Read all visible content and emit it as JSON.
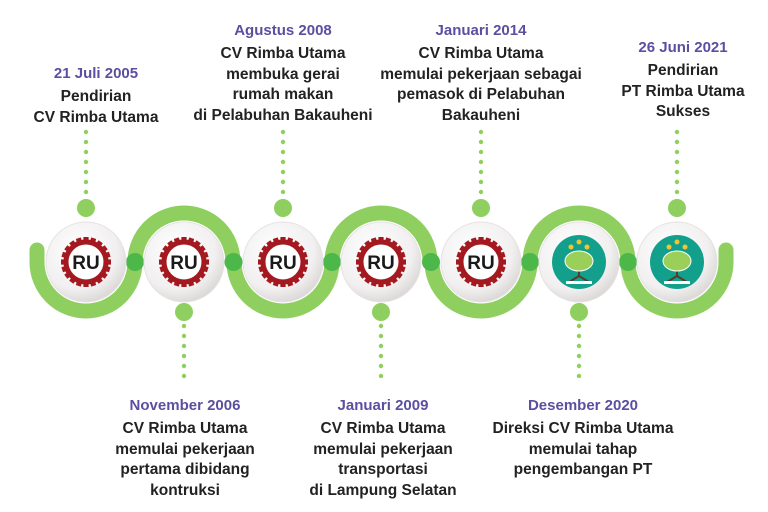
{
  "colors": {
    "band": "#8fcf5f",
    "band_dark": "#6dbb3e",
    "joint": "#4cb84a",
    "date": "#5a4fa0",
    "ru_gear": "#a3191f",
    "tree_bg": "#12a08c"
  },
  "events": [
    {
      "date": "21 Juli 2005",
      "lines": [
        "Pendirian",
        "CV Rimba Utama"
      ],
      "logo": "RU",
      "position": "top"
    },
    {
      "date": "November 2006",
      "lines": [
        "CV Rimba Utama",
        "memulai pekerjaan",
        "pertama dibidang",
        "kontruksi"
      ],
      "logo": "RU",
      "position": "bottom"
    },
    {
      "date": "Agustus 2008",
      "lines": [
        "CV Rimba Utama",
        "membuka gerai",
        "rumah makan",
        "di Pelabuhan Bakauheni"
      ],
      "logo": "RU",
      "position": "top"
    },
    {
      "date": "Januari 2009",
      "lines": [
        "CV Rimba Utama",
        "memulai pekerjaan",
        "transportasi",
        "di Lampung Selatan"
      ],
      "logo": "RU",
      "position": "bottom"
    },
    {
      "date": "Januari 2014",
      "lines": [
        "CV Rimba Utama",
        "memulai pekerjaan sebagai",
        "pemasok di Pelabuhan",
        "Bakauheni"
      ],
      "logo": "RU",
      "position": "top"
    },
    {
      "date": "Desember 2020",
      "lines": [
        "Direksi CV Rimba Utama",
        "memulai tahap",
        "pengembangan PT"
      ],
      "logo": "tree-logo",
      "position": "bottom"
    },
    {
      "date": "26 Juni 2021",
      "lines": [
        "Pendirian",
        "PT Rimba Utama",
        "Sukses"
      ],
      "logo": "tree-logo",
      "position": "top"
    }
  ]
}
